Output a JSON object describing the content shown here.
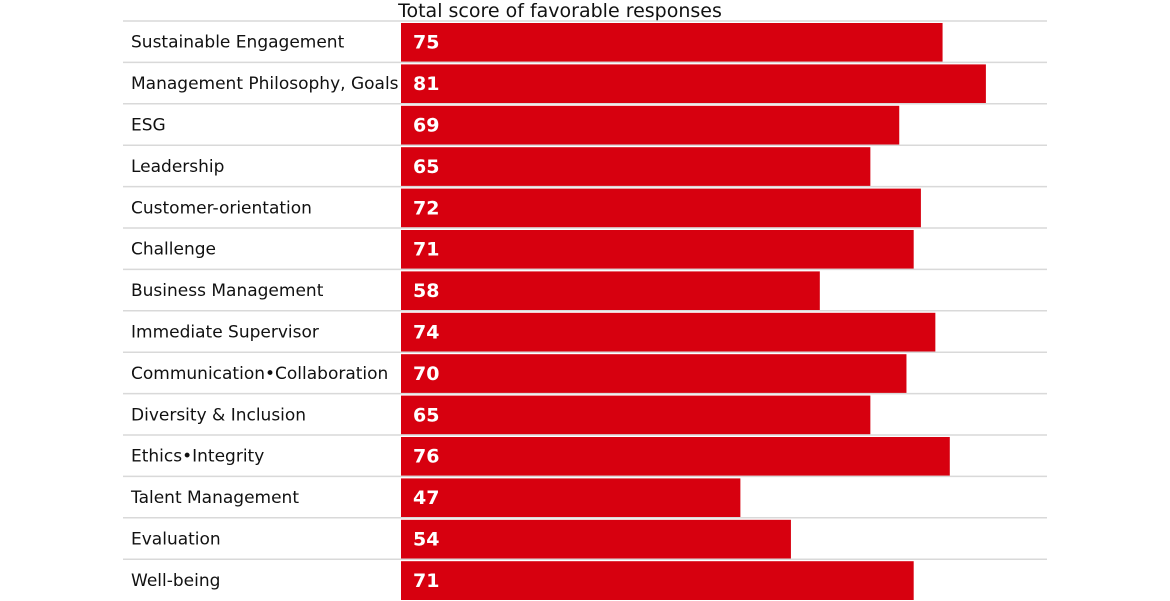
{
  "chart_data": {
    "type": "bar",
    "orientation": "horizontal",
    "title": "Total score of favorable responses",
    "categories": [
      "Sustainable Engagement",
      "Management Philosophy, Goals",
      "ESG",
      "Leadership",
      "Customer-orientation",
      "Challenge",
      "Business Management",
      "Immediate Supervisor",
      "Communication•Collaboration",
      "Diversity & Inclusion",
      "Ethics•Integrity",
      "Talent Management",
      "Evaluation",
      "Well-being"
    ],
    "values": [
      75,
      81,
      69,
      65,
      72,
      71,
      58,
      74,
      70,
      65,
      76,
      47,
      54,
      71
    ],
    "xlim": [
      0,
      86
    ],
    "grid": false,
    "legend": "none",
    "bar_color": "#d7000f",
    "value_label_color": "#ffffff",
    "text_color": "#111111",
    "divider_color": "#d9d9d9"
  }
}
